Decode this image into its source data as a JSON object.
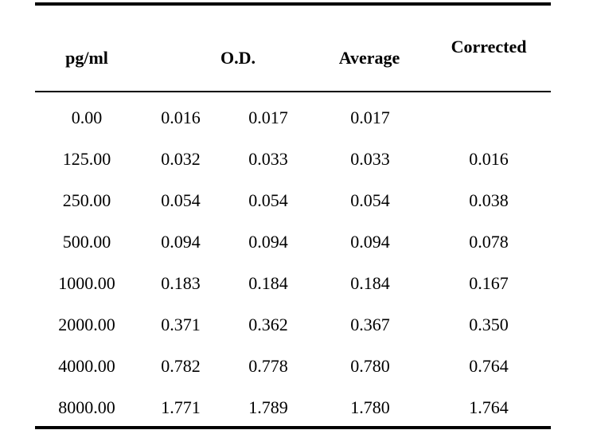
{
  "table": {
    "headers": {
      "concentration": "pg/ml",
      "od": "O.D.",
      "average": "Average",
      "corrected": "Corrected"
    },
    "rows": [
      [
        "0.00",
        "0.016",
        "0.017",
        "0.017",
        ""
      ],
      [
        "125.00",
        "0.032",
        "0.033",
        "0.033",
        "0.016"
      ],
      [
        "250.00",
        "0.054",
        "0.054",
        "0.054",
        "0.038"
      ],
      [
        "500.00",
        "0.094",
        "0.094",
        "0.094",
        "0.078"
      ],
      [
        "1000.00",
        "0.183",
        "0.184",
        "0.184",
        "0.167"
      ],
      [
        "2000.00",
        "0.371",
        "0.362",
        "0.367",
        "0.350"
      ],
      [
        "4000.00",
        "0.782",
        "0.778",
        "0.780",
        "0.764"
      ],
      [
        "8000.00",
        "1.771",
        "1.789",
        "1.780",
        "1.764"
      ]
    ]
  }
}
